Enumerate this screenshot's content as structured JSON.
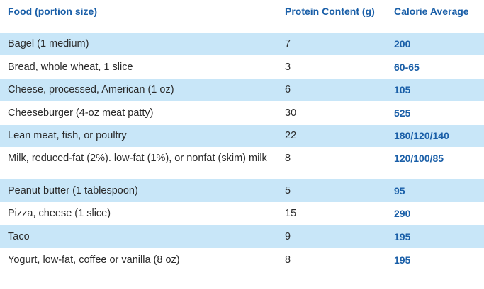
{
  "table": {
    "headers": {
      "food": "Food (portion size)",
      "protein": "Protein Content (g)",
      "calories": "Calorie Average"
    },
    "rows": [
      {
        "food": "Bagel (1 medium)",
        "protein": "7",
        "calories": "200"
      },
      {
        "food": "Bread, whole wheat, 1 slice",
        "protein": "3",
        "calories": "60-65"
      },
      {
        "food": "Cheese, processed, American (1 oz)",
        "protein": "6",
        "calories": "105"
      },
      {
        "food": "Cheeseburger (4-oz meat patty)",
        "protein": "30",
        "calories": "525"
      },
      {
        "food": "Lean meat, fish, or poultry",
        "protein": "22",
        "calories": "180/120/140"
      },
      {
        "food": "Milk, reduced-fat (2%). low-fat (1%), or nonfat (skim) milk",
        "protein": "8",
        "calories": "120/100/85"
      },
      {
        "food": "Peanut butter (1 tablespoon)",
        "protein": "5",
        "calories": "95"
      },
      {
        "food": "Pizza, cheese (1 slice)",
        "protein": "15",
        "calories": "290"
      },
      {
        "food": "Taco",
        "protein": "9",
        "calories": "195"
      },
      {
        "food": "Yogurt, low-fat, coffee or vanilla (8 oz)",
        "protein": "8",
        "calories": "195"
      }
    ]
  },
  "colors": {
    "header_text": "#1a5fa8",
    "row_shade": "#c8e6f8",
    "body_text": "#2b2b2b"
  }
}
